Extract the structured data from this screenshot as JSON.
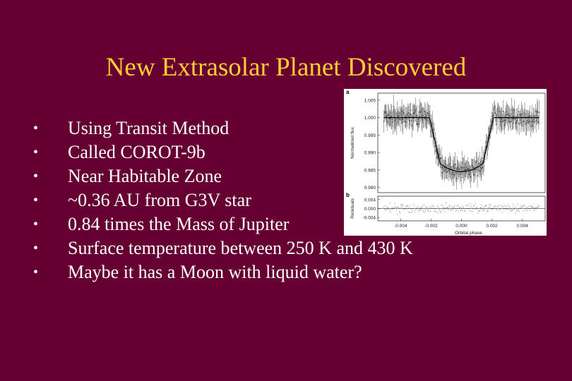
{
  "title": "New Extrasolar Planet Discovered",
  "bullets": [
    "Using Transit Method",
    "Called COROT-9b",
    "Near Habitable Zone",
    "~0.36 AU from G3V star",
    "0.84 times the Mass of Jupiter",
    "Surface temperature between 250 K and 430 K",
    "Maybe it has a Moon with liquid water?"
  ],
  "bullet_glyph": "•",
  "colors": {
    "background": "#660033",
    "title": "#ffcc33",
    "text": "#ffffff"
  },
  "figure": {
    "panel_a_label": "a",
    "panel_b_label": "b",
    "ylabel_flux": "Normalized flux",
    "ylabel_residuals": "Residuals",
    "xlabel": "Orbital phase",
    "flux_ticks": [
      "1.005",
      "1.000",
      "0.995",
      "0.990",
      "0.985",
      "0.980"
    ],
    "residual_ticks": [
      "0.004",
      "0.000",
      "-0.004"
    ],
    "x_ticks": [
      "-0.004",
      "-0.002",
      "0.000",
      "0.002",
      "0.004"
    ]
  },
  "chart_data": {
    "type": "scatter",
    "xlabel": "Orbital phase",
    "ylabel": "Normalized flux",
    "xlim": [
      -0.0055,
      0.0055
    ],
    "ylim": [
      0.9785,
      1.007
    ],
    "transit_model": {
      "baseline_flux": 1.0,
      "min_flux": 0.9845,
      "ingress_start": -0.0021,
      "ingress_end": -0.0014,
      "egress_start": 0.0014,
      "egress_end": 0.0021
    },
    "residuals": {
      "ylabel": "Residuals",
      "ylim": [
        -0.0055,
        0.0055
      ]
    }
  }
}
